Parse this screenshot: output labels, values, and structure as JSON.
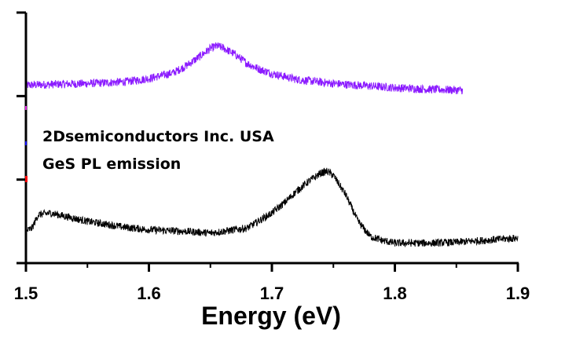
{
  "chart_data": {
    "type": "line",
    "title": "",
    "xlabel": "Energy (eV)",
    "ylabel": "",
    "xlim": [
      1.5,
      1.9
    ],
    "ylim": [
      0,
      3
    ],
    "x_ticks": [
      "1.5",
      "1.6",
      "1.7",
      "1.8",
      "1.9"
    ],
    "x_tick_values": [
      1.5,
      1.6,
      1.7,
      1.8,
      1.9
    ],
    "x_minor_tick_values": [
      1.55,
      1.65,
      1.75,
      1.85
    ],
    "y_tick_values": [
      0,
      1,
      2,
      3
    ],
    "grid": false,
    "annotations": [
      "2Dsemiconductors Inc. USA",
      "GeS PL emission"
    ],
    "series": [
      {
        "name": "upper-spectrum",
        "color": "#8B1AFF",
        "x": [
          1.5,
          1.52,
          1.55,
          1.58,
          1.6,
          1.62,
          1.63,
          1.64,
          1.65,
          1.655,
          1.66,
          1.67,
          1.68,
          1.69,
          1.7,
          1.72,
          1.75,
          1.78,
          1.8,
          1.83,
          1.855
        ],
        "y": [
          2.13,
          2.14,
          2.15,
          2.17,
          2.21,
          2.28,
          2.36,
          2.46,
          2.57,
          2.6,
          2.58,
          2.5,
          2.39,
          2.32,
          2.27,
          2.2,
          2.15,
          2.12,
          2.1,
          2.08,
          2.07
        ],
        "noise": 0.05
      },
      {
        "name": "lower-spectrum",
        "color": "#000000",
        "x": [
          1.5,
          1.505,
          1.51,
          1.52,
          1.55,
          1.58,
          1.6,
          1.63,
          1.65,
          1.68,
          1.7,
          1.71,
          1.72,
          1.73,
          1.74,
          1.745,
          1.75,
          1.76,
          1.77,
          1.78,
          1.79,
          1.8,
          1.83,
          1.85,
          1.88,
          1.9
        ],
        "y": [
          0.38,
          0.42,
          0.58,
          0.6,
          0.5,
          0.43,
          0.4,
          0.38,
          0.36,
          0.42,
          0.6,
          0.72,
          0.86,
          0.98,
          1.08,
          1.1,
          1.05,
          0.82,
          0.5,
          0.32,
          0.27,
          0.24,
          0.24,
          0.25,
          0.28,
          0.3
        ],
        "noise": 0.045
      }
    ]
  }
}
